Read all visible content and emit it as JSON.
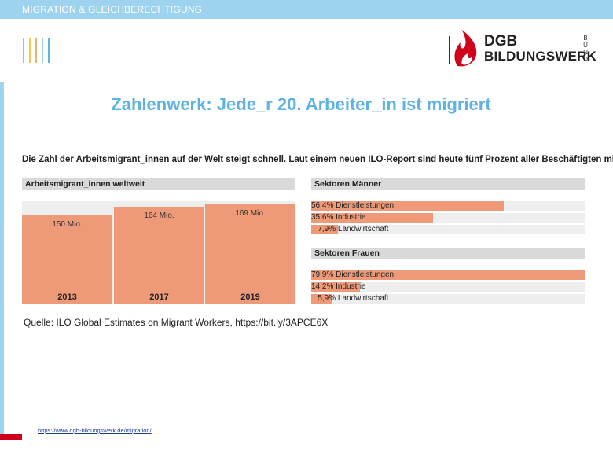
{
  "header": {
    "section_label": "MIGRATION & GLEICHBERECHTIGUNG"
  },
  "logo": {
    "line1": "DGB",
    "line2": "BILDUNGSWERK",
    "side": [
      "B",
      "U",
      "N",
      "D"
    ]
  },
  "slide": {
    "title": "Zahlenwerk: Jede_r 20. Arbeiter_in  ist migriert",
    "subtitle": "Die Zahl der Arbeitsmigrant_innen auf der Welt steigt schnell. Laut einem neuen ILO-Report sind heute fünf Prozent aller Beschäftigten migriert",
    "source": "Quelle: ILO Global Estimates on Migrant Workers, https://bit.ly/3APCE6X",
    "url": "https://www.dgb-bildungswerk.de/migration/"
  },
  "colors": {
    "accent": "#5eb3e0",
    "bar": "#ee9a78",
    "topbar": "#9ed3ef",
    "brand_red": "#d0021b"
  },
  "chart_data": [
    {
      "type": "bar",
      "title": "Arbeitsmigrant_innen weltweit",
      "categories": [
        "2013",
        "2017",
        "2019"
      ],
      "values": [
        150,
        164,
        169
      ],
      "value_labels": [
        "150 Mio.",
        "164 Mio.",
        "169 Mio."
      ],
      "ylim": [
        0,
        174
      ]
    },
    {
      "type": "bar",
      "orientation": "horizontal",
      "title": "Sektoren Männer",
      "categories": [
        "Dienstleistungen",
        "Industrie",
        "Landwirtschaft"
      ],
      "values": [
        56.4,
        35.6,
        7.9
      ],
      "value_labels": [
        "56,4%",
        "35,6%",
        "7,9%"
      ],
      "xlim": [
        0,
        80
      ]
    },
    {
      "type": "bar",
      "orientation": "horizontal",
      "title": "Sektoren Frauen",
      "categories": [
        "Dienstleistungen",
        "Industrie",
        "Landwirtschaft"
      ],
      "values": [
        79.9,
        14.2,
        5.9
      ],
      "value_labels": [
        "79,9%",
        "14,2%",
        "5,9%"
      ],
      "xlim": [
        0,
        80
      ]
    }
  ]
}
